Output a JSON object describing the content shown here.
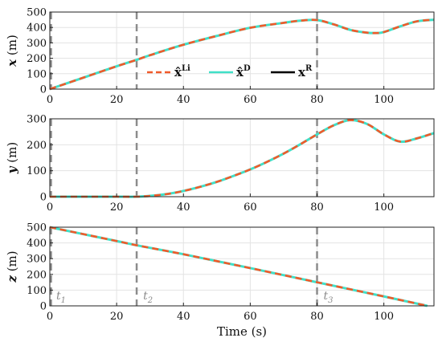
{
  "chart_data": [
    {
      "type": "line",
      "panel": "x",
      "ylabel_var": "x",
      "ylabel_unit": "(m)",
      "xlim": [
        0,
        115
      ],
      "ylim": [
        0,
        500
      ],
      "yticks": [
        "0",
        "100",
        "200",
        "300",
        "400",
        "500"
      ],
      "xticks": [
        "0",
        "20",
        "40",
        "60",
        "80",
        "100"
      ],
      "series": [
        {
          "name": "x̂^{Li}",
          "x": [
            0,
            10,
            20,
            26,
            30,
            40,
            50,
            60,
            70,
            75,
            80,
            85,
            90,
            95,
            98,
            100,
            105,
            110,
            115
          ],
          "y": [
            0,
            74,
            148,
            190,
            220,
            288,
            345,
            398,
            430,
            444,
            448,
            420,
            384,
            366,
            364,
            370,
            408,
            440,
            450
          ]
        },
        {
          "name": "x̂^{D}",
          "x": [
            0,
            10,
            20,
            26,
            30,
            40,
            50,
            60,
            70,
            75,
            80,
            85,
            90,
            95,
            98,
            100,
            105,
            110,
            115
          ],
          "y": [
            0,
            74,
            148,
            190,
            220,
            288,
            345,
            398,
            430,
            444,
            448,
            420,
            384,
            366,
            364,
            370,
            408,
            440,
            450
          ]
        },
        {
          "name": "x^{R}",
          "x": [
            0,
            10,
            20,
            26,
            30,
            40,
            50,
            60,
            70,
            75,
            80,
            85,
            90,
            95,
            98,
            100,
            105,
            110,
            115
          ],
          "y": [
            0,
            74,
            148,
            190,
            220,
            288,
            345,
            398,
            430,
            444,
            448,
            420,
            384,
            366,
            364,
            370,
            408,
            440,
            450
          ]
        }
      ]
    },
    {
      "type": "line",
      "panel": "y",
      "ylabel_var": "y",
      "ylabel_unit": "(m)",
      "xlim": [
        0,
        115
      ],
      "ylim": [
        0,
        300
      ],
      "yticks": [
        "0",
        "100",
        "200",
        "300"
      ],
      "xticks": [
        "0",
        "20",
        "40",
        "60",
        "80",
        "100"
      ],
      "series": [
        {
          "name": "x̂^{Li}",
          "x": [
            0,
            10,
            20,
            26,
            30,
            35,
            40,
            45,
            50,
            55,
            60,
            65,
            70,
            75,
            80,
            85,
            90,
            95,
            100,
            105,
            110,
            115
          ],
          "y": [
            0,
            0,
            0,
            0,
            3,
            10,
            22,
            38,
            57,
            80,
            105,
            134,
            166,
            202,
            240,
            275,
            295,
            280,
            240,
            212,
            225,
            245
          ]
        },
        {
          "name": "x̂^{D}",
          "x": [
            0,
            10,
            20,
            26,
            30,
            35,
            40,
            45,
            50,
            55,
            60,
            65,
            70,
            75,
            80,
            85,
            90,
            95,
            100,
            105,
            110,
            115
          ],
          "y": [
            0,
            0,
            0,
            0,
            3,
            10,
            22,
            38,
            57,
            80,
            105,
            134,
            166,
            202,
            240,
            275,
            295,
            280,
            240,
            212,
            225,
            245
          ]
        },
        {
          "name": "x^{R}",
          "x": [
            0,
            10,
            20,
            26,
            30,
            35,
            40,
            45,
            50,
            55,
            60,
            65,
            70,
            75,
            80,
            85,
            90,
            95,
            100,
            105,
            110,
            115
          ],
          "y": [
            0,
            0,
            0,
            0,
            3,
            10,
            22,
            38,
            57,
            80,
            105,
            134,
            166,
            202,
            240,
            275,
            295,
            280,
            240,
            212,
            225,
            245
          ]
        }
      ]
    },
    {
      "type": "line",
      "panel": "z",
      "ylabel_var": "z",
      "ylabel_unit": "(m)",
      "xlabel": "Time (s)",
      "xlim": [
        0,
        115
      ],
      "ylim": [
        0,
        500
      ],
      "yticks": [
        "0",
        "100",
        "200",
        "300",
        "400",
        "500"
      ],
      "xticks": [
        "0",
        "20",
        "40",
        "60",
        "80",
        "100"
      ],
      "series": [
        {
          "name": "x̂^{Li}",
          "x": [
            0,
            20,
            26,
            40,
            60,
            80,
            100,
            113
          ],
          "y": [
            500,
            412,
            385,
            328,
            240,
            150,
            60,
            0
          ]
        },
        {
          "name": "x̂^{D}",
          "x": [
            0,
            20,
            26,
            40,
            60,
            80,
            100,
            113
          ],
          "y": [
            500,
            412,
            385,
            328,
            240,
            150,
            60,
            0
          ]
        },
        {
          "name": "x^{R}",
          "x": [
            0,
            20,
            26,
            40,
            60,
            80,
            100,
            113
          ],
          "y": [
            500,
            412,
            385,
            328,
            240,
            150,
            60,
            0
          ]
        }
      ]
    }
  ],
  "time_markers": [
    {
      "label_base": "t",
      "label_sub": "1",
      "x": 0
    },
    {
      "label_base": "t",
      "label_sub": "2",
      "x": 26
    },
    {
      "label_base": "t",
      "label_sub": "3",
      "x": 80
    }
  ],
  "legend": {
    "placement": "inside-top-panel-center",
    "entries": [
      {
        "base": "x̂",
        "sup": "Li",
        "color": "#f05a2a",
        "style": "dashed"
      },
      {
        "base": "x̂",
        "sup": "D",
        "color": "#40e0c8",
        "style": "solid"
      },
      {
        "base": "x",
        "sup": "R",
        "color": "#000000",
        "style": "solid"
      }
    ]
  },
  "colors": {
    "li": "#f05a2a",
    "d": "#40e0c8",
    "r": "#000000",
    "marker": "#8c8c8c",
    "grid": "#e3e3e3"
  }
}
